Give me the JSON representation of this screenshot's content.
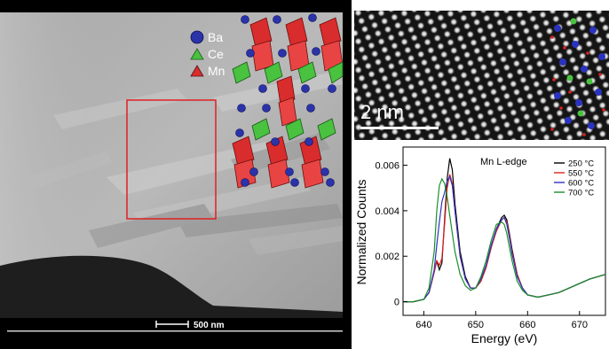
{
  "panel_a": {
    "legend": [
      {
        "label": "Ba",
        "shape": "circle",
        "color": "#2a33a8"
      },
      {
        "label": "Ce",
        "shape": "triangle",
        "color": "#49c23f"
      },
      {
        "label": "Mn",
        "shape": "triangle",
        "color": "#d92c2c"
      }
    ],
    "scale_bar": "500 nm",
    "colors": {
      "roi_box": "#e02020",
      "ba": "#2a33a8",
      "ce": "#49c23f",
      "mn": "#d92c2c"
    }
  },
  "panel_b": {
    "scale_bar": "2 nm"
  },
  "panel_c": {
    "chart_data": {
      "type": "line",
      "title": "Mn L-edge",
      "xlabel": "Energy (eV)",
      "ylabel": "Normalized Counts",
      "xlim": [
        636,
        675
      ],
      "ylim": [
        -0.0006,
        0.0068
      ],
      "xticks": [
        640,
        650,
        660,
        670
      ],
      "yticks": [
        0,
        0.002,
        0.004,
        0.006
      ],
      "ytick_labels": [
        "0",
        "0.002",
        "0.004",
        "0.006"
      ],
      "legend_position": "top-right",
      "series": [
        {
          "name": "250 °C",
          "color": "#000000",
          "x": [
            636,
            638,
            640,
            641,
            642,
            642.5,
            643,
            643.5,
            644,
            644.5,
            645,
            645.5,
            646,
            647,
            648,
            649,
            650,
            651,
            652,
            653,
            654,
            655,
            655.5,
            656,
            656.5,
            657,
            658,
            659,
            660,
            662,
            664,
            666,
            668,
            670,
            672,
            675
          ],
          "y": [
            0,
            0,
            0.0001,
            0.0004,
            0.0013,
            0.0018,
            0.0014,
            0.0017,
            0.0036,
            0.0054,
            0.0063,
            0.0058,
            0.0043,
            0.0022,
            0.0011,
            0.0006,
            0.0006,
            0.0009,
            0.0015,
            0.0024,
            0.0032,
            0.0037,
            0.0038,
            0.0036,
            0.003,
            0.0023,
            0.0012,
            0.0006,
            0.0003,
            0.0002,
            0.0003,
            0.0004,
            0.0006,
            0.0008,
            0.001,
            0.0012
          ]
        },
        {
          "name": "550 °C",
          "color": "#e02020",
          "x": [
            636,
            638,
            640,
            641,
            642,
            642.5,
            643,
            643.5,
            644,
            644.5,
            645,
            645.5,
            646,
            647,
            648,
            649,
            650,
            651,
            652,
            653,
            654,
            655,
            655.5,
            656,
            656.5,
            657,
            658,
            659,
            660,
            662,
            664,
            666,
            668,
            670,
            672,
            675
          ],
          "y": [
            0,
            0,
            0.0001,
            0.0004,
            0.0013,
            0.0018,
            0.0016,
            0.0019,
            0.0034,
            0.005,
            0.0056,
            0.0052,
            0.004,
            0.002,
            0.001,
            0.0006,
            0.0006,
            0.0009,
            0.0015,
            0.0024,
            0.0031,
            0.0036,
            0.0037,
            0.0035,
            0.0029,
            0.0022,
            0.0012,
            0.0006,
            0.0003,
            0.0002,
            0.0003,
            0.0004,
            0.0006,
            0.0008,
            0.001,
            0.0012
          ]
        },
        {
          "name": "600 °C",
          "color": "#2a33c0",
          "x": [
            636,
            638,
            640,
            641,
            642,
            642.5,
            643,
            643.5,
            644,
            644.5,
            645,
            645.5,
            646,
            647,
            648,
            649,
            650,
            651,
            652,
            653,
            654,
            655,
            655.5,
            656,
            656.5,
            657,
            658,
            659,
            660,
            662,
            664,
            666,
            668,
            670,
            672,
            675
          ],
          "y": [
            0,
            0,
            0.0001,
            0.0004,
            0.0014,
            0.0025,
            0.0035,
            0.0044,
            0.0048,
            0.0053,
            0.0055,
            0.0051,
            0.004,
            0.002,
            0.001,
            0.0006,
            0.0006,
            0.001,
            0.0016,
            0.0025,
            0.0032,
            0.0036,
            0.0037,
            0.0034,
            0.0028,
            0.0021,
            0.0011,
            0.0006,
            0.0003,
            0.0002,
            0.0003,
            0.0004,
            0.0006,
            0.0008,
            0.001,
            0.0012
          ]
        },
        {
          "name": "700 °C",
          "color": "#1a8f2a",
          "x": [
            636,
            638,
            640,
            641,
            642,
            642.5,
            643,
            643.5,
            644,
            644.5,
            645,
            645.5,
            646,
            647,
            648,
            649,
            650,
            651,
            652,
            653,
            654,
            655,
            655.5,
            656,
            656.5,
            657,
            658,
            659,
            660,
            662,
            664,
            666,
            668,
            670,
            672,
            675
          ],
          "y": [
            0,
            0,
            0.0001,
            0.0006,
            0.0022,
            0.004,
            0.0051,
            0.0054,
            0.0052,
            0.0046,
            0.0038,
            0.003,
            0.0022,
            0.0012,
            0.0007,
            0.0005,
            0.0006,
            0.0011,
            0.0018,
            0.0027,
            0.0034,
            0.0035,
            0.0034,
            0.003,
            0.0024,
            0.0018,
            0.0009,
            0.0005,
            0.0003,
            0.0002,
            0.0003,
            0.0004,
            0.0006,
            0.0008,
            0.001,
            0.0012
          ]
        }
      ]
    }
  }
}
